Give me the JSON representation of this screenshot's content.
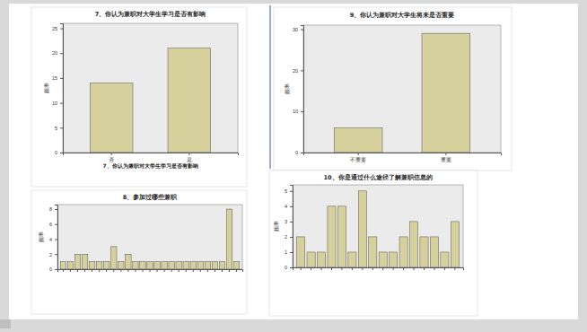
{
  "chart_data": [
    {
      "type": "bar",
      "title": "7、你认为兼职对大学生学习是否有影响",
      "x_label": "7、你认为兼职对大学生学习是否有影响",
      "y_label": "频率",
      "categories": [
        "否",
        "是"
      ],
      "values": [
        14,
        21
      ],
      "color": "#d5d09c",
      "ylim": [
        0,
        26
      ],
      "yticks": [
        0,
        5,
        10,
        15,
        20,
        25
      ]
    },
    {
      "type": "bar",
      "title": "9、你认为兼职对大学生将来是否重要",
      "y_label": "频率",
      "categories": [
        "不重要",
        "重要"
      ],
      "values": [
        6,
        29
      ],
      "color": "#d5d09c",
      "ylim": [
        0,
        31
      ],
      "yticks": [
        0,
        10,
        20,
        30
      ]
    },
    {
      "type": "bar",
      "title": "8、参加过哪些兼职",
      "y_label": "频率",
      "categories": [
        null,
        null,
        null,
        null,
        null,
        null,
        null,
        null,
        null,
        null,
        null,
        null,
        null,
        null,
        null,
        null,
        null,
        null,
        null,
        null,
        null,
        null,
        null,
        null,
        null
      ],
      "values": [
        1,
        1,
        2,
        2,
        1,
        1,
        1,
        3,
        1,
        2,
        1,
        1,
        1,
        1,
        1,
        1,
        1,
        1,
        1,
        1,
        1,
        1,
        1,
        8,
        1
      ],
      "color": "#d5d09c",
      "ylim": [
        0,
        8.6
      ],
      "yticks": [
        0,
        2,
        4,
        6,
        8
      ]
    },
    {
      "type": "bar",
      "title": "10、你是通过什么途径了解兼职信息的",
      "y_label": "频率",
      "categories": [
        null,
        null,
        null,
        null,
        null,
        null,
        null,
        null,
        null,
        null,
        null,
        null,
        null,
        null,
        null,
        null
      ],
      "values": [
        2,
        1,
        1,
        4,
        4,
        1,
        5,
        2,
        1,
        1,
        2,
        3,
        2,
        2,
        1,
        3
      ],
      "color": "#d5d09c",
      "ylim": [
        0,
        5.4
      ],
      "yticks": [
        0,
        1,
        2,
        3,
        4,
        5
      ]
    }
  ]
}
